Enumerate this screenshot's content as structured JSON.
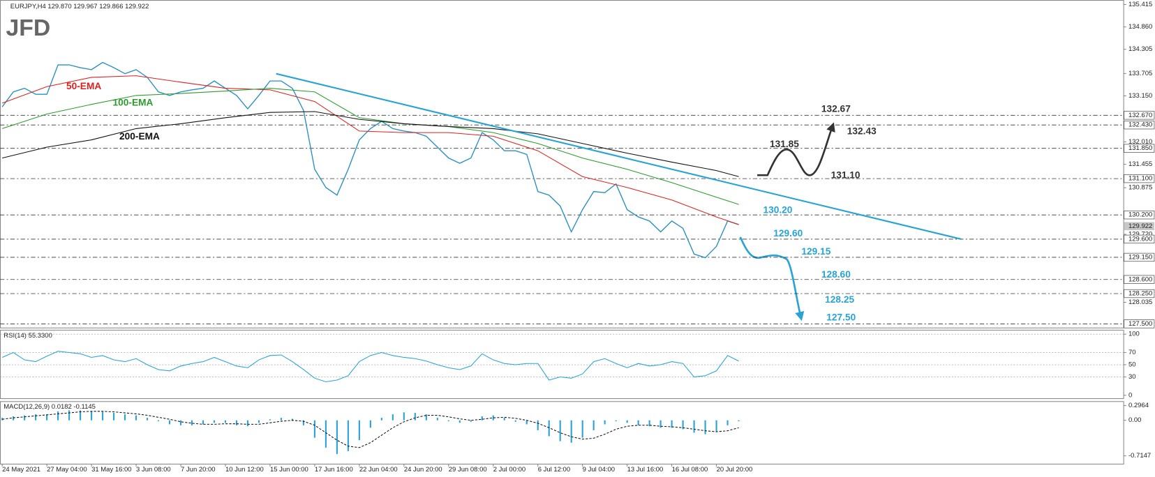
{
  "chart_data": {
    "type": "line",
    "title": "EURJPY,H4  129.870 129.967 129.866 129.922",
    "logo": "JFD",
    "color": "#2b8fc0",
    "categories": [
      "24 May 2021",
      null,
      null,
      null,
      "27 May 04:00",
      null,
      null,
      null,
      "31 May 16:00",
      null,
      null,
      null,
      "3 Jun 08:00",
      null,
      null,
      null,
      "7 Jun 20:00",
      null,
      null,
      null,
      "10 Jun 12:00",
      null,
      null,
      null,
      "15 Jun 00:00",
      null,
      null,
      null,
      "17 Jun 16:00",
      null,
      null,
      null,
      "22 Jun 04:00",
      null,
      null,
      null,
      "24 Jun 20:00",
      null,
      null,
      null,
      "29 Jun 08:00",
      null,
      null,
      null,
      "2 Jul 00:00",
      null,
      null,
      null,
      "6 Jul 12:00",
      null,
      null,
      null,
      "9 Jul 04:00",
      null,
      null,
      null,
      "13 Jul 16:00",
      null,
      null,
      null,
      "16 Jul 08:00",
      null,
      null,
      null,
      "20 Jul 20:00",
      null,
      null
    ],
    "values": [
      132.88,
      133.25,
      133.34,
      133.19,
      133.19,
      133.92,
      133.92,
      133.85,
      133.8,
      133.98,
      133.85,
      133.7,
      133.8,
      133.61,
      133.25,
      133.16,
      133.25,
      133.3,
      133.34,
      133.52,
      133.34,
      133.16,
      132.83,
      133.16,
      133.52,
      133.52,
      133.34,
      132.79,
      131.33,
      130.88,
      130.69,
      131.33,
      132.06,
      132.34,
      132.52,
      132.34,
      132.28,
      132.24,
      132.15,
      131.88,
      131.61,
      131.48,
      131.61,
      132.24,
      132.06,
      131.79,
      131.79,
      131.7,
      130.78,
      130.69,
      130.42,
      129.78,
      130.33,
      130.78,
      130.75,
      130.97,
      130.33,
      130.15,
      130.05,
      129.78,
      130.05,
      129.87,
      129.23,
      129.14,
      129.42,
      130.05,
      129.96
    ],
    "overlays": [
      {
        "name": "50-EMA",
        "color": "#e02020",
        "x": [
          0,
          4,
          8,
          12,
          16,
          20,
          24,
          28,
          32,
          36,
          40,
          44,
          48,
          52,
          56,
          60,
          64,
          66
        ],
        "values": [
          132.97,
          133.38,
          133.61,
          133.65,
          133.49,
          133.34,
          133.3,
          133.01,
          132.28,
          132.24,
          132.24,
          132.15,
          131.79,
          131.15,
          130.88,
          130.57,
          130.15,
          129.96
        ]
      },
      {
        "name": "100-EMA",
        "color": "#2e9b2e",
        "x": [
          0,
          4,
          8,
          12,
          16,
          20,
          24,
          28,
          32,
          36,
          40,
          44,
          48,
          52,
          56,
          60,
          64,
          66
        ],
        "values": [
          132.34,
          132.7,
          132.94,
          133.16,
          133.21,
          133.27,
          133.34,
          133.25,
          132.61,
          132.46,
          132.39,
          132.24,
          131.97,
          131.61,
          131.33,
          131.0,
          130.64,
          130.46
        ]
      },
      {
        "name": "200-EMA",
        "color": "#111111",
        "x": [
          0,
          4,
          8,
          12,
          16,
          20,
          24,
          28,
          32,
          36,
          40,
          44,
          48,
          52,
          56,
          60,
          64,
          66
        ],
        "values": [
          131.61,
          131.88,
          132.06,
          132.34,
          132.46,
          132.61,
          132.74,
          132.76,
          132.57,
          132.46,
          132.39,
          132.34,
          132.21,
          131.97,
          131.73,
          131.51,
          131.3,
          131.15
        ]
      }
    ],
    "trendline": {
      "color": "#29a3d6",
      "x": [
        24.55,
        85.94
      ],
      "values": [
        133.7,
        129.6
      ]
    },
    "ylim": [
      127.39,
      135.49
    ],
    "yticks": [
      135.415,
      {
        "value": 134.86,
        "label": "134.860"
      },
      134.305,
      133.705,
      {
        "value": 133.15,
        "label": "133.150"
      },
      {
        "value": 132.01,
        "label": "132.010"
      },
      131.455,
      130.875,
      {
        "value": 129.72,
        "label": "129.720"
      },
      128.035
    ],
    "levels": [
      {
        "value": 132.67,
        "label": "132.670"
      },
      {
        "value": 132.43,
        "label": "132.430"
      },
      {
        "value": 131.85,
        "label": "131.850"
      },
      {
        "value": 131.1,
        "label": "131.100"
      },
      {
        "value": 130.2,
        "label": "130.200"
      },
      {
        "value": 129.6,
        "label": "129.600"
      },
      {
        "value": 129.15,
        "label": "129.150"
      },
      {
        "value": 128.6,
        "label": "128.600"
      },
      {
        "value": 128.25,
        "label": "128.250"
      },
      {
        "value": 127.5,
        "label": "127.500"
      }
    ],
    "last_price": 129.922,
    "annotations": [
      {
        "text": "132.67",
        "value": 132.67,
        "color": "#333333"
      },
      {
        "text": "132.43",
        "value": 132.43,
        "color": "#333333"
      },
      {
        "text": "131.85",
        "value": 131.85,
        "color": "#333333"
      },
      {
        "text": "131.10",
        "value": 131.1,
        "color": "#333333"
      },
      {
        "text": "130.20",
        "value": 130.2,
        "color": "#29a3d6"
      },
      {
        "text": "129.60",
        "value": 129.6,
        "color": "#29a3d6"
      },
      {
        "text": "129.15",
        "value": 129.15,
        "color": "#29a3d6"
      },
      {
        "text": "128.60",
        "value": 128.6,
        "color": "#29a3d6"
      },
      {
        "text": "128.25",
        "value": 128.25,
        "color": "#29a3d6"
      },
      {
        "text": "127.50",
        "value": 127.5,
        "color": "#29a3d6"
      }
    ],
    "panels": [
      {
        "type": "line",
        "title": "RSI(14) 55.3300",
        "color": "#29a3d6",
        "ylim": [
          -4.8,
          107.2
        ],
        "yticks": [
          100,
          70,
          50,
          30,
          0
        ],
        "grid": true,
        "values": [
          62,
          70,
          58,
          55,
          64,
          72,
          70,
          68,
          62,
          65,
          58,
          55,
          60,
          50,
          42,
          40,
          48,
          52,
          55,
          62,
          55,
          48,
          45,
          58,
          65,
          66,
          55,
          42,
          28,
          22,
          25,
          32,
          55,
          65,
          70,
          65,
          62,
          60,
          56,
          50,
          45,
          42,
          48,
          68,
          58,
          52,
          50,
          52,
          52,
          25,
          30,
          28,
          35,
          55,
          60,
          52,
          45,
          52,
          48,
          50,
          55,
          52,
          30,
          32,
          40,
          65,
          56
        ]
      },
      {
        "type": "bar",
        "title": "MACD(12,26,9) 0.0182 -0.1145",
        "color": "#29a3d6",
        "signal_color": "#111111",
        "ylim": [
          -0.874,
          0.385
        ],
        "yticks": [
          0.2964,
          {
            "value": 0,
            "label": "0.00"
          },
          -0.7147
        ],
        "values": [
          0.05,
          0.08,
          0.1,
          0.12,
          0.12,
          0.18,
          0.2,
          0.2,
          0.18,
          0.17,
          0.15,
          0.12,
          0.1,
          0.05,
          -0.02,
          -0.08,
          -0.1,
          -0.1,
          -0.08,
          -0.05,
          -0.05,
          -0.1,
          -0.12,
          -0.05,
          0.02,
          0.05,
          0.03,
          -0.1,
          -0.35,
          -0.55,
          -0.68,
          -0.62,
          -0.4,
          -0.15,
          0.05,
          0.12,
          0.16,
          0.15,
          0.12,
          0.05,
          -0.02,
          -0.05,
          -0.03,
          0.08,
          0.1,
          0.05,
          -0.03,
          -0.08,
          -0.2,
          -0.32,
          -0.42,
          -0.45,
          -0.35,
          -0.2,
          -0.08,
          -0.02,
          -0.05,
          -0.1,
          -0.12,
          -0.15,
          -0.15,
          -0.18,
          -0.25,
          -0.28,
          -0.22,
          -0.1,
          -0.02
        ],
        "signal": [
          0.02,
          0.05,
          0.07,
          0.09,
          0.11,
          0.13,
          0.15,
          0.17,
          0.18,
          0.18,
          0.17,
          0.15,
          0.13,
          0.1,
          0.06,
          0.02,
          -0.03,
          -0.06,
          -0.08,
          -0.08,
          -0.07,
          -0.07,
          -0.08,
          -0.08,
          -0.05,
          -0.02,
          0.0,
          -0.02,
          -0.1,
          -0.25,
          -0.4,
          -0.52,
          -0.55,
          -0.45,
          -0.3,
          -0.15,
          -0.03,
          0.05,
          0.1,
          0.1,
          0.07,
          0.03,
          0.0,
          0.02,
          0.05,
          0.06,
          0.04,
          0.0,
          -0.06,
          -0.15,
          -0.25,
          -0.33,
          -0.38,
          -0.36,
          -0.28,
          -0.18,
          -0.12,
          -0.1,
          -0.1,
          -0.12,
          -0.13,
          -0.15,
          -0.18,
          -0.21,
          -0.23,
          -0.21,
          -0.15
        ]
      }
    ]
  }
}
